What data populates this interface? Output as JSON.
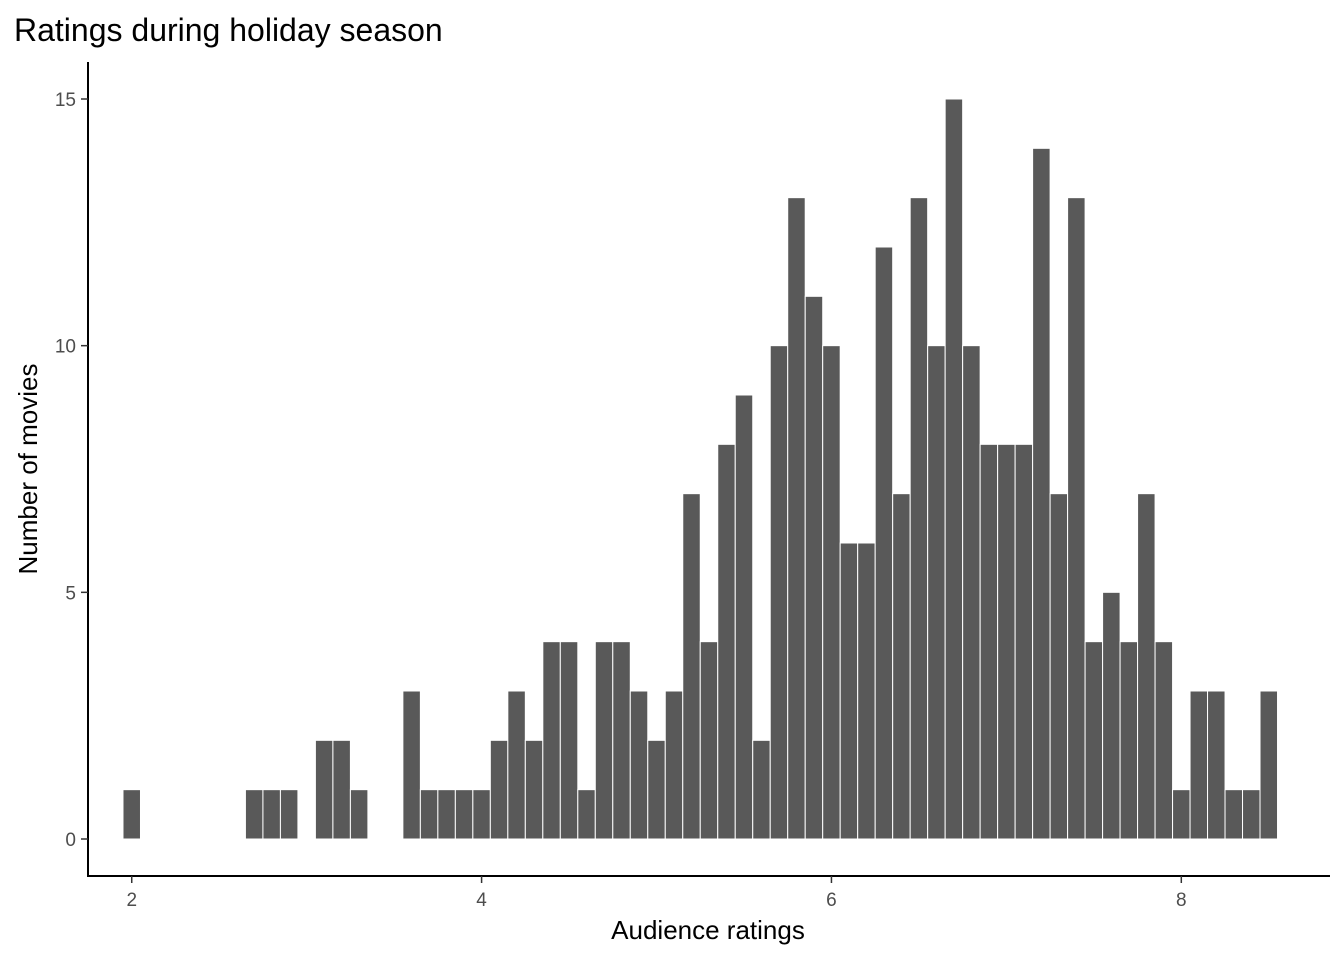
{
  "colors": {
    "bar_fill": "#595959",
    "background": "#ffffff",
    "axis": "#000000",
    "tick_text": "#4d4d4d"
  },
  "chart_data": {
    "type": "bar",
    "title": "Ratings during holiday season",
    "xlabel": "Audience ratings",
    "ylabel": "Number of movies",
    "bin_width": 0.1,
    "x": [
      2.0,
      2.7,
      2.8,
      2.9,
      3.1,
      3.2,
      3.3,
      3.6,
      3.7,
      3.8,
      3.9,
      4.0,
      4.1,
      4.2,
      4.3,
      4.4,
      4.5,
      4.6,
      4.7,
      4.8,
      4.9,
      5.0,
      5.1,
      5.2,
      5.3,
      5.4,
      5.5,
      5.6,
      5.7,
      5.8,
      5.9,
      6.0,
      6.1,
      6.2,
      6.3,
      6.4,
      6.5,
      6.6,
      6.7,
      6.8,
      6.9,
      7.0,
      7.1,
      7.2,
      7.3,
      7.4,
      7.5,
      7.6,
      7.7,
      7.8,
      7.9,
      8.0,
      8.1,
      8.2,
      8.3,
      8.4,
      8.5
    ],
    "values": [
      1,
      1,
      1,
      1,
      2,
      2,
      1,
      3,
      1,
      1,
      1,
      1,
      2,
      3,
      2,
      4,
      4,
      1,
      4,
      4,
      3,
      2,
      3,
      7,
      4,
      8,
      9,
      2,
      10,
      13,
      11,
      10,
      6,
      6,
      12,
      7,
      13,
      10,
      15,
      10,
      8,
      8,
      8,
      14,
      7,
      13,
      4,
      5,
      4,
      7,
      4,
      1,
      3,
      3,
      1,
      1,
      3
    ],
    "xlim": [
      1.75,
      8.85
    ],
    "ylim": [
      -0.75,
      15.75
    ],
    "x_ticks": [
      2,
      4,
      6,
      8
    ],
    "y_ticks": [
      0,
      5,
      10,
      15
    ],
    "grid": false,
    "legend": false
  }
}
